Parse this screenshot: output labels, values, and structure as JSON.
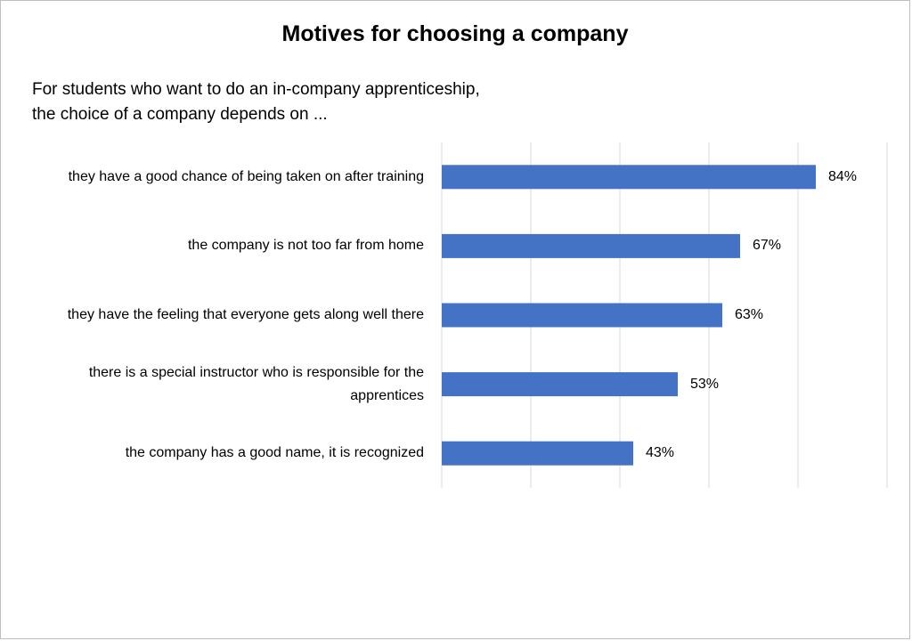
{
  "chart_data": {
    "type": "bar",
    "orientation": "horizontal",
    "title": "Motives for choosing a company",
    "subtitle": "For students who want to do an in-company apprenticeship,\nthe choice of a company depends on ...",
    "categories": [
      "they have a good chance of being taken on after training",
      "the company is not too far from home",
      "they have the feeling that everyone gets along well there",
      "there is a special instructor who is responsible for the apprentices",
      "the company has a good name, it is recognized"
    ],
    "values": [
      84,
      67,
      63,
      53,
      43
    ],
    "value_labels": [
      "84%",
      "67%",
      "63%",
      "53%",
      "43%"
    ],
    "color": "#4472c4",
    "xlim": [
      0,
      100
    ],
    "xticks": [
      0,
      20,
      40,
      60,
      80,
      100
    ],
    "grid": true
  }
}
